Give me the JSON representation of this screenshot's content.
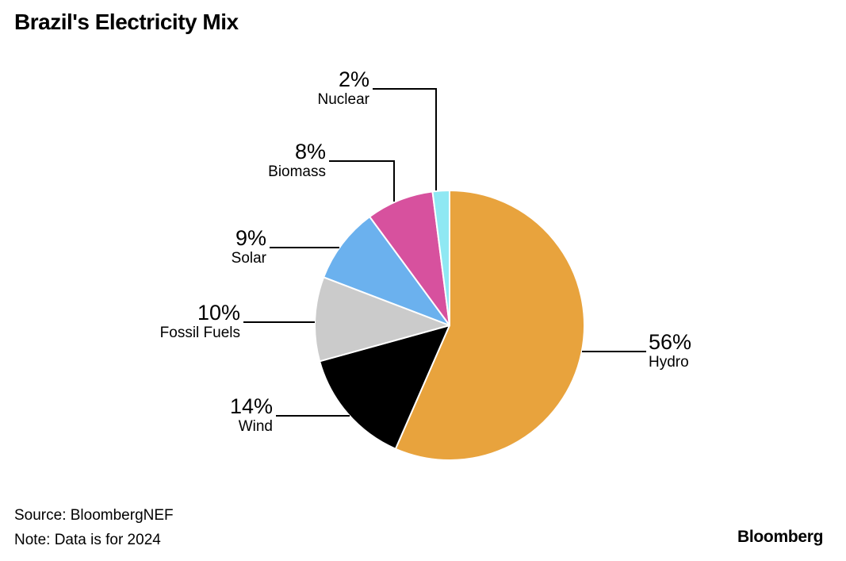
{
  "title": "Brazil's Electricity Mix",
  "source": "Source: BloombergNEF",
  "note": "Note: Data is for 2024",
  "logo": "Bloomberg",
  "chart_data": {
    "type": "pie",
    "title": "Brazil's Electricity Mix",
    "start_angle_deg_from_top_clockwise": 0,
    "grid": false,
    "legend": "callout-labels-with-leader-lines",
    "slices": [
      {
        "label": "Hydro",
        "value": 56,
        "display": "56%",
        "color": "#E8A33D"
      },
      {
        "label": "Wind",
        "value": 14,
        "display": "14%",
        "color": "#000000"
      },
      {
        "label": "Fossil Fuels",
        "value": 10,
        "display": "10%",
        "color": "#CBCBCB"
      },
      {
        "label": "Solar",
        "value": 9,
        "display": "9%",
        "color": "#6BB1EE"
      },
      {
        "label": "Biomass",
        "value": 8,
        "display": "8%",
        "color": "#D7519E"
      },
      {
        "label": "Nuclear",
        "value": 2,
        "display": "2%",
        "color": "#8FE8F3"
      }
    ],
    "source": "Source: BloombergNEF",
    "note": "Note: Data is for 2024"
  }
}
